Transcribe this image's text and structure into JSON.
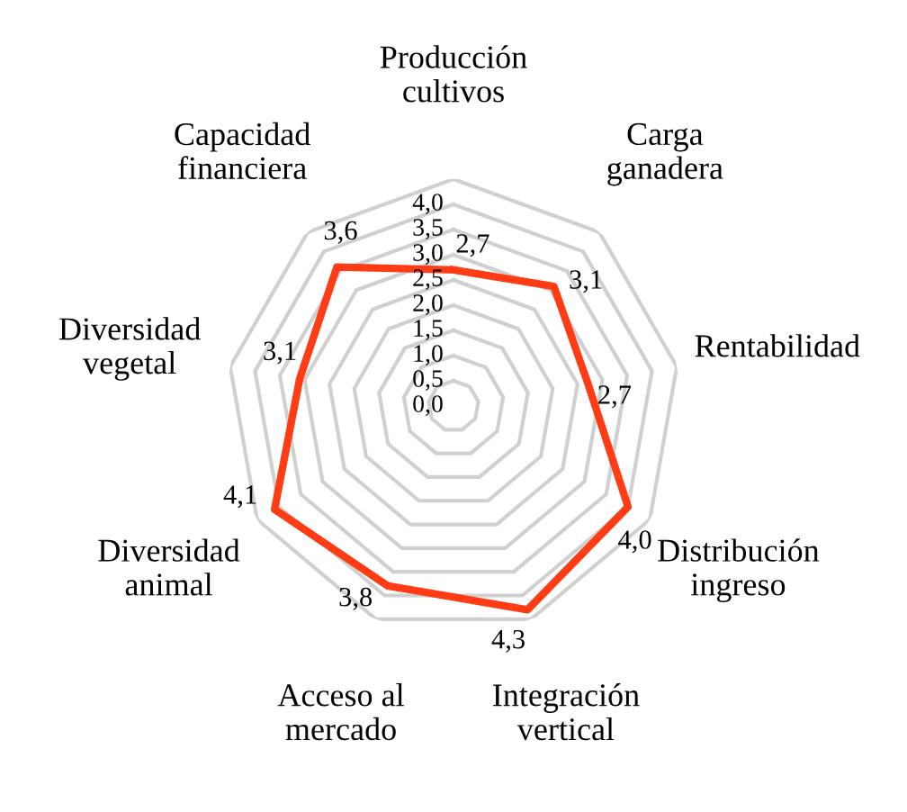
{
  "chart_data": {
    "type": "radar",
    "categories": [
      "Producción cultivos",
      "Carga ganadera",
      "Rentabilidad",
      "Distribución ingreso",
      "Integración vertical",
      "Acceso al mercado",
      "Diversidad animal",
      "Diversidad vegetal",
      "Capacidad financiera"
    ],
    "series": [
      {
        "color": "#ff3c14",
        "values": [
          2.7,
          3.1,
          2.7,
          4.0,
          4.3,
          3.8,
          4.1,
          3.1,
          3.6
        ],
        "value_labels": [
          "2,7",
          "3,1",
          "2,7",
          "4,0",
          "4,3",
          "3,8",
          "4,1",
          "3,1",
          "3,6"
        ]
      }
    ],
    "ylim": [
      0,
      4.5
    ],
    "yticks": [
      {
        "value": 0,
        "label": "0,0"
      },
      {
        "value": 0.5,
        "label": "0,5"
      },
      {
        "value": 1.0,
        "label": "1,0"
      },
      {
        "value": 1.5,
        "label": "1,5"
      },
      {
        "value": 2.0,
        "label": "2,0"
      },
      {
        "value": 2.5,
        "label": "2,5"
      },
      {
        "value": 3.0,
        "label": "3,0"
      },
      {
        "value": 3.5,
        "label": "3,5"
      },
      {
        "value": 4.0,
        "label": "4,0"
      }
    ],
    "grid": true
  }
}
